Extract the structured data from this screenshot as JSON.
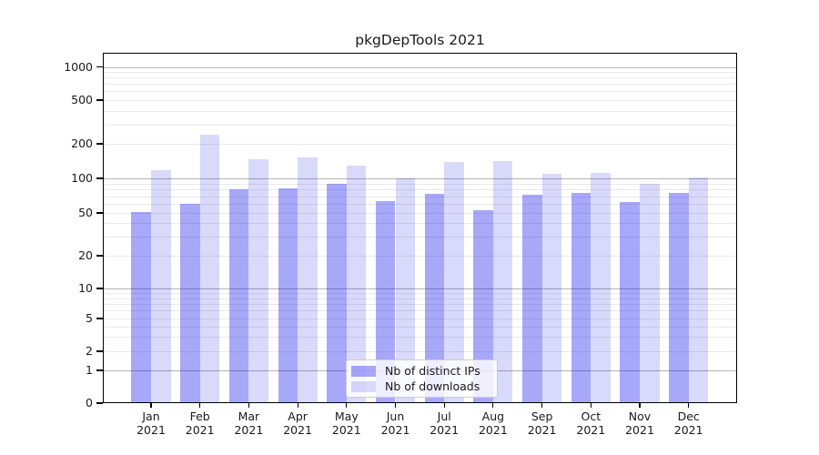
{
  "chart_data": {
    "type": "bar",
    "title": "pkgDepTools 2021",
    "x_categories": [
      "Jan",
      "Feb",
      "Mar",
      "Apr",
      "May",
      "Jun",
      "Jul",
      "Aug",
      "Sep",
      "Oct",
      "Nov",
      "Dec"
    ],
    "x_year": "2021",
    "series": [
      {
        "name": "Nb of distinct IPs",
        "color_hex": "#a9a9f8",
        "css_color": "rgba(0,0,238,0.34)",
        "values": [
          51,
          60,
          80,
          82,
          90,
          63,
          73,
          53,
          72,
          75,
          62,
          75
        ]
      },
      {
        "name": "Nb of downloads",
        "color_hex": "#dadaf9",
        "css_color": "rgba(0,0,238,0.15)",
        "values": [
          118,
          240,
          148,
          152,
          130,
          100,
          138,
          142,
          110,
          112,
          89,
          101
        ]
      }
    ],
    "y_axis": {
      "scale": "symlog",
      "tick_values": [
        0,
        1,
        2,
        5,
        10,
        20,
        50,
        100,
        200,
        500,
        1000
      ],
      "tick_labels": [
        "0",
        "1",
        "2",
        "5",
        "10",
        "20",
        "50",
        "100",
        "200",
        "500",
        "1000"
      ],
      "range": [
        0,
        1000
      ]
    },
    "grid": {
      "major_values": [
        1,
        10,
        100,
        1000
      ],
      "minor_values": [
        2,
        3,
        4,
        5,
        6,
        7,
        8,
        9,
        20,
        30,
        40,
        50,
        60,
        70,
        80,
        90,
        200,
        300,
        400,
        500,
        600,
        700,
        800,
        900
      ]
    },
    "legend_position": "lower-center"
  },
  "colors": {
    "major_grid": "#b4b4b4",
    "minor_grid": "#e9e9e9",
    "spine": "#000000",
    "text": "#1a1a1a",
    "legend_border": "#cccccc",
    "legend_bg": "rgba(255,255,255,0.8)"
  }
}
